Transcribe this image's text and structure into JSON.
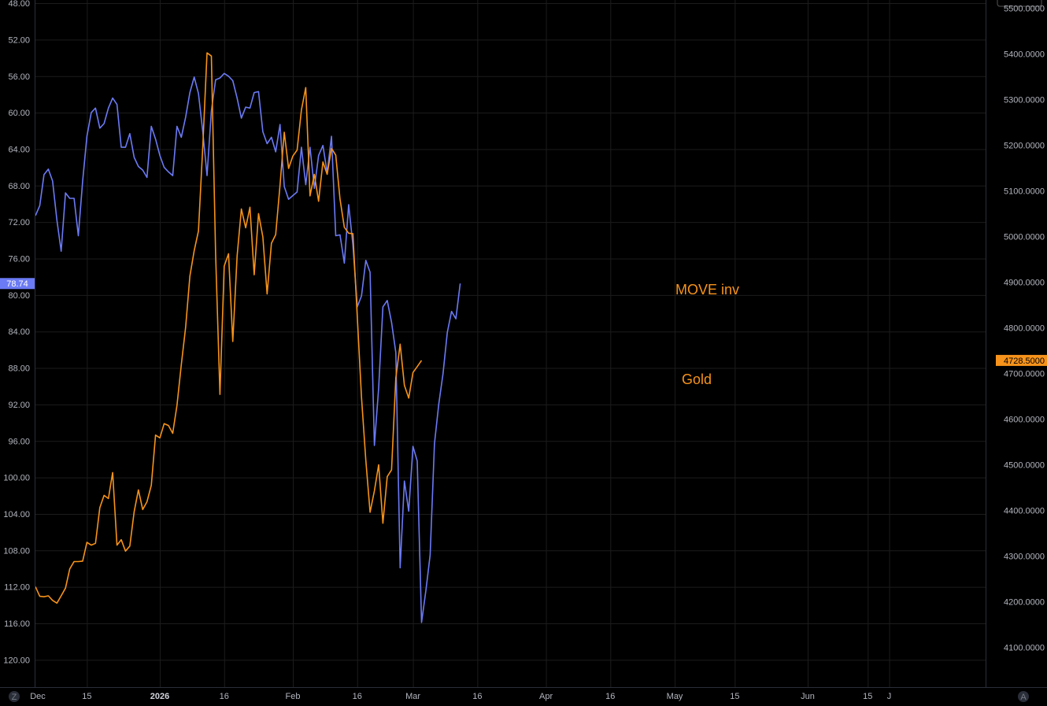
{
  "chart_data": {
    "type": "line",
    "title": "",
    "left_axis": {
      "inverted": true,
      "ylim": [
        47.6,
        122.6
      ],
      "ticks": [
        "48.00",
        "52.00",
        "56.00",
        "60.00",
        "64.00",
        "68.00",
        "72.00",
        "76.00",
        "80.00",
        "84.00",
        "88.00",
        "92.00",
        "96.00",
        "100.00",
        "104.00",
        "108.00",
        "112.00",
        "116.00",
        "120.00"
      ]
    },
    "right_axis": {
      "ylim": [
        4060,
        5580
      ],
      "ticks": [
        "5500.0000",
        "5400.0000",
        "5300.0000",
        "5200.0000",
        "5100.0000",
        "5000.0000",
        "4900.0000",
        "4800.0000",
        "4700.0000",
        "4600.0000",
        "4500.0000",
        "4400.0000",
        "4300.0000",
        "4200.0000",
        "4100.0000"
      ]
    },
    "x_axis": {
      "range": [
        "2025-12-03",
        "2026-06-20"
      ],
      "ticks": [
        {
          "date": "2025-12-01",
          "label": "Dec"
        },
        {
          "date": "2025-12-15",
          "label": "15"
        },
        {
          "date": "2026-01-01",
          "label": "2026",
          "bold": true
        },
        {
          "date": "2026-01-16",
          "label": "16"
        },
        {
          "date": "2026-02-01",
          "label": "Feb"
        },
        {
          "date": "2026-02-16",
          "label": "16"
        },
        {
          "date": "2026-03-01",
          "label": "Mar"
        },
        {
          "date": "2026-03-16",
          "label": "16"
        },
        {
          "date": "2026-04-01",
          "label": "Apr"
        },
        {
          "date": "2026-04-16",
          "label": "16"
        },
        {
          "date": "2026-05-01",
          "label": "May"
        },
        {
          "date": "2026-05-15",
          "label": "15"
        },
        {
          "date": "2026-06-01",
          "label": "Jun"
        },
        {
          "date": "2026-06-15",
          "label": "15"
        },
        {
          "date": "2026-06-20",
          "label": "J"
        }
      ]
    },
    "series": [
      {
        "name": "MOVE inv",
        "axis": "left",
        "color": "#6b7af5",
        "last_value_label": "78.74",
        "points": [
          [
            "2025-12-03",
            71.3
          ],
          [
            "2025-12-04",
            70.2
          ],
          [
            "2025-12-05",
            66.8
          ],
          [
            "2025-12-06",
            66.2
          ],
          [
            "2025-12-07",
            67.5
          ],
          [
            "2025-12-08",
            71.8
          ],
          [
            "2025-12-09",
            75.2
          ],
          [
            "2025-12-10",
            68.8
          ],
          [
            "2025-12-11",
            69.4
          ],
          [
            "2025-12-12",
            69.4
          ],
          [
            "2025-12-13",
            73.5
          ],
          [
            "2025-12-14",
            67.5
          ],
          [
            "2025-12-15",
            62.6
          ],
          [
            "2025-12-16",
            60.0
          ],
          [
            "2025-12-17",
            59.5
          ],
          [
            "2025-12-18",
            61.7
          ],
          [
            "2025-12-19",
            61.2
          ],
          [
            "2025-12-20",
            59.5
          ],
          [
            "2025-12-21",
            58.4
          ],
          [
            "2025-12-22",
            59.1
          ],
          [
            "2025-12-23",
            63.8
          ],
          [
            "2025-12-24",
            63.8
          ],
          [
            "2025-12-25",
            62.3
          ],
          [
            "2025-12-26",
            64.9
          ],
          [
            "2025-12-27",
            65.9
          ],
          [
            "2025-12-28",
            66.3
          ],
          [
            "2025-12-29",
            67.1
          ],
          [
            "2025-12-30",
            61.5
          ],
          [
            "2025-12-31",
            62.9
          ],
          [
            "2026-01-01",
            64.7
          ],
          [
            "2026-01-02",
            66.0
          ],
          [
            "2026-01-03",
            66.5
          ],
          [
            "2026-01-04",
            66.9
          ],
          [
            "2026-01-05",
            61.5
          ],
          [
            "2026-01-06",
            62.7
          ],
          [
            "2026-01-07",
            60.5
          ],
          [
            "2026-01-08",
            57.8
          ],
          [
            "2026-01-09",
            56.1
          ],
          [
            "2026-01-10",
            57.9
          ],
          [
            "2026-01-11",
            62.1
          ],
          [
            "2026-01-12",
            66.9
          ],
          [
            "2026-01-13",
            59.8
          ],
          [
            "2026-01-14",
            56.4
          ],
          [
            "2026-01-15",
            56.2
          ],
          [
            "2026-01-16",
            55.7
          ],
          [
            "2026-01-17",
            56.0
          ],
          [
            "2026-01-18",
            56.5
          ],
          [
            "2026-01-19",
            58.4
          ],
          [
            "2026-01-20",
            60.6
          ],
          [
            "2026-01-21",
            59.4
          ],
          [
            "2026-01-22",
            59.5
          ],
          [
            "2026-01-23",
            57.8
          ],
          [
            "2026-01-24",
            57.7
          ],
          [
            "2026-01-25",
            62.1
          ],
          [
            "2026-01-26",
            63.4
          ],
          [
            "2026-01-27",
            62.7
          ],
          [
            "2026-01-28",
            64.3
          ],
          [
            "2026-01-29",
            61.3
          ],
          [
            "2026-01-30",
            68.1
          ],
          [
            "2026-01-31",
            69.5
          ],
          [
            "2026-02-01",
            69.1
          ],
          [
            "2026-02-02",
            68.7
          ],
          [
            "2026-02-03",
            63.8
          ],
          [
            "2026-02-04",
            67.9
          ],
          [
            "2026-02-05",
            63.8
          ],
          [
            "2026-02-06",
            68.3
          ],
          [
            "2026-02-07",
            64.7
          ],
          [
            "2026-02-08",
            63.6
          ],
          [
            "2026-02-09",
            66.6
          ],
          [
            "2026-02-10",
            62.6
          ],
          [
            "2026-02-11",
            73.5
          ],
          [
            "2026-02-12",
            73.4
          ],
          [
            "2026-02-13",
            76.5
          ],
          [
            "2026-02-14",
            70.1
          ],
          [
            "2026-02-15",
            74.5
          ],
          [
            "2026-02-16",
            81.3
          ],
          [
            "2026-02-17",
            80.1
          ],
          [
            "2026-02-18",
            76.2
          ],
          [
            "2026-02-19",
            77.5
          ],
          [
            "2026-02-20",
            96.5
          ],
          [
            "2026-02-21",
            90.2
          ],
          [
            "2026-02-22",
            81.3
          ],
          [
            "2026-02-23",
            80.6
          ],
          [
            "2026-02-24",
            83.0
          ],
          [
            "2026-02-25",
            86.3
          ],
          [
            "2026-02-26",
            109.9
          ],
          [
            "2026-02-27",
            100.4
          ],
          [
            "2026-02-28",
            103.7
          ],
          [
            "2026-03-01",
            96.6
          ],
          [
            "2026-03-02",
            98.2
          ],
          [
            "2026-03-03",
            115.9
          ],
          [
            "2026-03-04",
            112.4
          ],
          [
            "2026-03-05",
            108.5
          ],
          [
            "2026-03-06",
            96.3
          ],
          [
            "2026-03-07",
            92.0
          ],
          [
            "2026-03-08",
            88.6
          ],
          [
            "2026-03-09",
            84.1
          ],
          [
            "2026-03-10",
            81.8
          ],
          [
            "2026-03-11",
            82.6
          ],
          [
            "2026-03-12",
            78.74
          ]
        ]
      },
      {
        "name": "Gold",
        "axis": "right",
        "color": "#f7931a",
        "last_value_label": "4728.5000",
        "points": [
          [
            "2025-12-03",
            4233
          ],
          [
            "2025-12-04",
            4212
          ],
          [
            "2025-12-05",
            4211
          ],
          [
            "2025-12-06",
            4213
          ],
          [
            "2025-12-07",
            4203
          ],
          [
            "2025-12-08",
            4197
          ],
          [
            "2025-12-09",
            4213
          ],
          [
            "2025-12-10",
            4230
          ],
          [
            "2025-12-11",
            4272
          ],
          [
            "2025-12-12",
            4288
          ],
          [
            "2025-12-13",
            4288
          ],
          [
            "2025-12-14",
            4289
          ],
          [
            "2025-12-15",
            4330
          ],
          [
            "2025-12-16",
            4324
          ],
          [
            "2025-12-17",
            4328
          ],
          [
            "2025-12-18",
            4406
          ],
          [
            "2025-12-19",
            4433
          ],
          [
            "2025-12-20",
            4426
          ],
          [
            "2025-12-21",
            4483
          ],
          [
            "2025-12-22",
            4324
          ],
          [
            "2025-12-23",
            4336
          ],
          [
            "2025-12-24",
            4311
          ],
          [
            "2025-12-25",
            4322
          ],
          [
            "2025-12-26",
            4397
          ],
          [
            "2025-12-27",
            4445
          ],
          [
            "2025-12-28",
            4402
          ],
          [
            "2025-12-29",
            4419
          ],
          [
            "2025-12-30",
            4455
          ],
          [
            "2025-12-31",
            4565
          ],
          [
            "2026-01-01",
            4559
          ],
          [
            "2026-01-02",
            4590
          ],
          [
            "2026-01-03",
            4586
          ],
          [
            "2026-01-04",
            4569
          ],
          [
            "2026-01-05",
            4630
          ],
          [
            "2026-01-06",
            4719
          ],
          [
            "2026-01-07",
            4801
          ],
          [
            "2026-01-08",
            4913
          ],
          [
            "2026-01-09",
            4969
          ],
          [
            "2026-01-10",
            5012
          ],
          [
            "2026-01-11",
            5197
          ],
          [
            "2026-01-12",
            5402
          ],
          [
            "2026-01-13",
            5395
          ],
          [
            "2026-01-14",
            4961
          ],
          [
            "2026-01-15",
            4654
          ],
          [
            "2026-01-16",
            4935
          ],
          [
            "2026-01-17",
            4962
          ],
          [
            "2026-01-18",
            4770
          ],
          [
            "2026-01-19",
            4957
          ],
          [
            "2026-01-20",
            5060
          ],
          [
            "2026-01-21",
            5019
          ],
          [
            "2026-01-22",
            5064
          ],
          [
            "2026-01-23",
            4916
          ],
          [
            "2026-01-24",
            5050
          ],
          [
            "2026-01-25",
            4999
          ],
          [
            "2026-01-26",
            4874
          ],
          [
            "2026-01-27",
            4985
          ],
          [
            "2026-01-28",
            5004
          ],
          [
            "2026-01-29",
            5112
          ],
          [
            "2026-01-30",
            5228
          ],
          [
            "2026-01-31",
            5149
          ],
          [
            "2026-02-01",
            5176
          ],
          [
            "2026-02-02",
            5189
          ],
          [
            "2026-02-03",
            5277
          ],
          [
            "2026-02-04",
            5326
          ],
          [
            "2026-02-05",
            5089
          ],
          [
            "2026-02-06",
            5136
          ],
          [
            "2026-02-07",
            5077
          ],
          [
            "2026-02-08",
            5163
          ],
          [
            "2026-02-09",
            5136
          ],
          [
            "2026-02-10",
            5193
          ],
          [
            "2026-02-11",
            5178
          ],
          [
            "2026-02-12",
            5082
          ],
          [
            "2026-02-13",
            5020
          ],
          [
            "2026-02-14",
            5007
          ],
          [
            "2026-02-15",
            5006
          ],
          [
            "2026-02-16",
            4826
          ],
          [
            "2026-02-17",
            4648
          ],
          [
            "2026-02-18",
            4510
          ],
          [
            "2026-02-19",
            4396
          ],
          [
            "2026-02-20",
            4443
          ],
          [
            "2026-02-21",
            4500
          ],
          [
            "2026-02-22",
            4372
          ],
          [
            "2026-02-23",
            4474
          ],
          [
            "2026-02-24",
            4489
          ],
          [
            "2026-02-25",
            4690
          ],
          [
            "2026-02-26",
            4764
          ],
          [
            "2026-02-27",
            4674
          ],
          [
            "2026-02-28",
            4646
          ],
          [
            "2026-03-01",
            4702
          ],
          [
            "2026-03-02",
            4715
          ],
          [
            "2026-03-03",
            4728.5
          ]
        ]
      }
    ],
    "annotations": [
      {
        "text": "MOVE inv",
        "color": "#f7931a"
      },
      {
        "text": "Gold",
        "color": "#f7931a"
      }
    ]
  },
  "ui": {
    "bottom_left_icon": "Z",
    "bottom_right_icon": "A"
  }
}
